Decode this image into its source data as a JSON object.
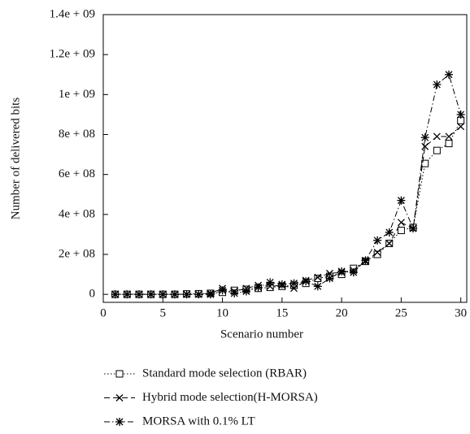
{
  "chart_data": {
    "type": "line",
    "x_label": "Scenario number",
    "y_label": "Number of delivered bits",
    "x": [
      1,
      2,
      3,
      4,
      5,
      6,
      7,
      8,
      9,
      10,
      11,
      12,
      13,
      14,
      15,
      16,
      17,
      18,
      19,
      20,
      21,
      22,
      23,
      24,
      25,
      26,
      27,
      28,
      29,
      30
    ],
    "xlim": [
      0,
      30.5
    ],
    "xticks": [
      0,
      5,
      10,
      15,
      20,
      25,
      30
    ],
    "ylim": [
      -40000000,
      1400000000
    ],
    "yticks": [
      0,
      {
        "value": 200000000,
        "label": "2e + 08"
      },
      {
        "value": 400000000,
        "label": "4e + 08"
      },
      {
        "value": 600000000,
        "label": "6e + 08"
      },
      {
        "value": 800000000,
        "label": "8e + 08"
      },
      {
        "value": 1000000000,
        "label": "1e + 09"
      },
      {
        "value": 1200000000,
        "label": "1.2e + 09"
      },
      {
        "value": 1400000000,
        "label": "1.4e + 09"
      }
    ],
    "legend": "bottom",
    "series": [
      {
        "name": "Standard mode selection (RBAR)",
        "color": "#000000",
        "marker": "square",
        "dash": "dotted",
        "values": [
          0,
          0,
          0,
          0,
          0,
          0,
          2000000,
          3000000,
          5000000,
          10000000,
          20000000,
          25000000,
          30000000,
          35000000,
          40000000,
          45000000,
          55000000,
          80000000,
          90000000,
          100000000,
          130000000,
          165000000,
          200000000,
          255000000,
          320000000,
          335000000,
          655000000,
          720000000,
          755000000,
          870000000
        ]
      },
      {
        "name": "Hybrid mode selection(H-MORSA)",
        "color": "#000000",
        "marker": "cross",
        "dash": "dashed",
        "values": [
          0,
          0,
          0,
          0,
          0,
          0,
          0,
          0,
          5000000,
          30000000,
          15000000,
          30000000,
          45000000,
          40000000,
          45000000,
          30000000,
          70000000,
          85000000,
          105000000,
          110000000,
          120000000,
          165000000,
          210000000,
          255000000,
          360000000,
          330000000,
          740000000,
          790000000,
          790000000,
          840000000
        ]
      },
      {
        "name": "MORSA with 0.1% LT",
        "color": "#000000",
        "marker": "asterisk",
        "dash": "dashdot",
        "values": [
          0,
          0,
          0,
          0,
          0,
          0,
          0,
          0,
          0,
          20000000,
          5000000,
          15000000,
          35000000,
          60000000,
          50000000,
          55000000,
          65000000,
          40000000,
          80000000,
          115000000,
          110000000,
          170000000,
          270000000,
          310000000,
          470000000,
          330000000,
          785000000,
          1050000000,
          1100000000,
          900000000
        ]
      }
    ]
  }
}
